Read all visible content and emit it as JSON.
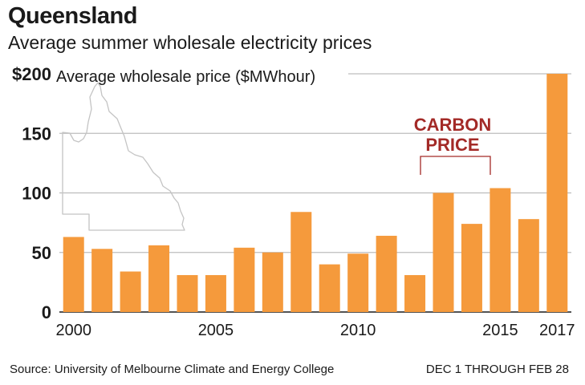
{
  "header": {
    "title": "Queensland",
    "subtitle": "Average summer wholesale electricity prices"
  },
  "footer": {
    "source": "Source: University of Melbourne Climate and Energy College",
    "period": "DEC 1 THROUGH FEB 28"
  },
  "colors": {
    "bar": "#f59a3c",
    "annotation": "#a32a27",
    "grid": "#bdbdbd",
    "map": "#c4c4c4"
  },
  "map": {
    "icon": "queensland-map-outline"
  },
  "chart_data": {
    "type": "bar",
    "title": "Queensland",
    "subtitle": "Average summer wholesale electricity prices",
    "ylabel": "Average wholesale price ($MWhour)",
    "ylim": [
      0,
      200
    ],
    "yticks": [
      "0",
      "50",
      "100",
      "150",
      "$200"
    ],
    "categories": [
      "2000",
      "2001",
      "2002",
      "2003",
      "2004",
      "2005",
      "2006",
      "2007",
      "2008",
      "2009",
      "2010",
      "2011",
      "2012",
      "2013",
      "2014",
      "2015",
      "2016",
      "2017"
    ],
    "x_tick_labels": [
      "2000",
      "2005",
      "2010",
      "2015",
      "2017"
    ],
    "values": [
      63,
      53,
      34,
      56,
      31,
      31,
      54,
      50,
      84,
      40,
      49,
      64,
      31,
      100,
      74,
      104,
      78,
      200
    ],
    "annotation": {
      "label_line1": "CARBON",
      "label_line2": "PRICE",
      "span": [
        "2012",
        "2015"
      ]
    },
    "grid": true
  }
}
